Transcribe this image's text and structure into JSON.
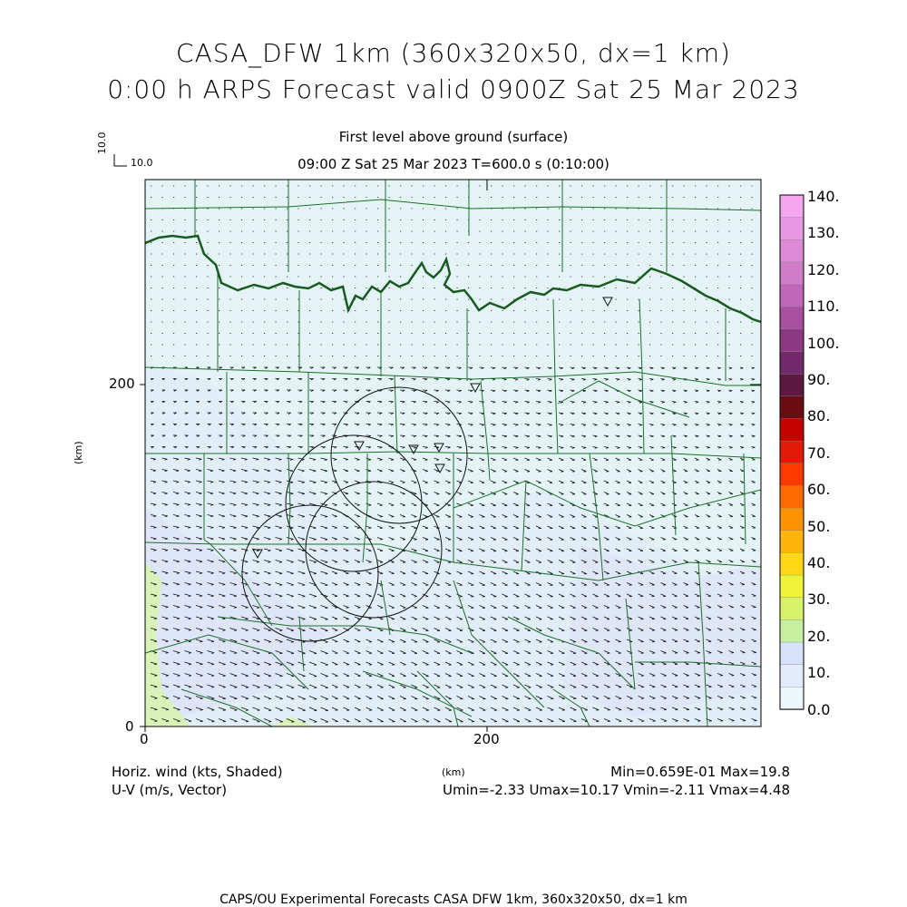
{
  "title": {
    "line1": "CASA_DFW 1km (360x320x50, dx=1 km)",
    "line2": "0:00 h ARPS Forecast valid 0900Z Sat 25 Mar 2023"
  },
  "subtitle": {
    "level": "First level above ground (surface)",
    "time": "09:00 Z Sat 25 Mar 2023    T=600.0 s (0:10:00)"
  },
  "vector_key": {
    "vertical": "10.0",
    "horizontal": "10.0"
  },
  "axes": {
    "x_ticks": [
      "0",
      "200"
    ],
    "y_ticks": [
      "0",
      "200"
    ],
    "x_unit": "(km)",
    "y_unit": "(km)"
  },
  "colorbar": {
    "labels": [
      "140.",
      "130.",
      "120.",
      "110.",
      "100.",
      "90.",
      "80.",
      "70.",
      "60.",
      "50.",
      "40.",
      "30.",
      "20.",
      "10.",
      "0.0"
    ],
    "colors": [
      "#f4a6ee",
      "#e898e2",
      "#dc8ad6",
      "#cf7cc9",
      "#bf68b9",
      "#a8509f",
      "#8c3984",
      "#732a6a",
      "#5c1a42",
      "#6b0c12",
      "#c40000",
      "#e41a08",
      "#ff3a00",
      "#ff6a00",
      "#ff9200",
      "#ffb40a",
      "#ffd818",
      "#eef23a",
      "#d8f26a",
      "#c6f0a0",
      "#d6e2f8",
      "#e4ecfb",
      "#edf6fb"
    ]
  },
  "legend": {
    "left1": "Horiz. wind (kts, Shaded)",
    "left2": "U-V (m/s, Vector)",
    "center": "(km)",
    "right1": "Min=0.659E-01 Max=19.8",
    "right2": "Umin=-2.33 Umax=10.17 Vmin=-2.11 Vmax=4.48"
  },
  "footer": "CAPS/OU Experimental Forecasts  CASA DFW 1km, 360x320x50, dx=1 km",
  "colors": {
    "background_shade": "#e4f4f6",
    "county_lines": "#1e6e2a",
    "radar_rings": "#111111"
  }
}
